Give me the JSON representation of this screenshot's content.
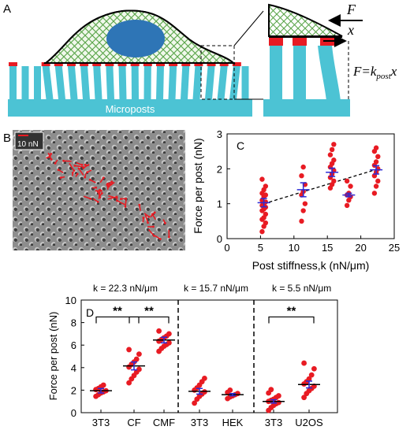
{
  "panels": {
    "a": "A",
    "b": "B",
    "c": "C",
    "d": "D"
  },
  "schematic": {
    "base_label": "Microposts",
    "force_symbol": "F",
    "disp_symbol": "x",
    "formula_lhs": "F",
    "formula_k": "k",
    "formula_sub": "post",
    "formula_x": "x",
    "colors": {
      "post": "#4cc3d4",
      "cap": "#e81b23",
      "mesh_fill": "#e6f2dc",
      "mesh": "#5ca64c",
      "nucleus": "#2e75b6"
    }
  },
  "micrograph": {
    "scale_label": "10 nN"
  },
  "chart_data": [
    {
      "id": "C",
      "type": "scatter",
      "xlabel": "Post stiffness,k (nN/μm)",
      "ylabel": "Force per post (nN)",
      "xlim": [
        0,
        25
      ],
      "ylim": [
        0,
        3
      ],
      "xticks": [
        "0",
        "5",
        "10",
        "15",
        "20",
        "25"
      ],
      "yticks": [
        "0",
        "1",
        "2",
        "3"
      ],
      "groups": [
        {
          "x": 5.5,
          "mean": 1.03,
          "err": 0.12,
          "points": [
            0.2,
            0.35,
            0.45,
            0.55,
            0.6,
            0.7,
            0.8,
            0.85,
            0.9,
            0.95,
            1.0,
            1.05,
            1.1,
            1.2,
            1.25,
            1.3,
            1.4,
            1.5,
            1.7
          ]
        },
        {
          "x": 11.4,
          "mean": 1.4,
          "err": 0.2,
          "points": [
            0.5,
            0.8,
            1.0,
            1.25,
            1.35,
            1.55,
            1.8,
            2.05
          ]
        },
        {
          "x": 15.7,
          "mean": 1.9,
          "err": 0.12,
          "points": [
            1.45,
            1.55,
            1.65,
            1.75,
            1.85,
            1.95,
            2.05,
            2.15,
            2.25,
            2.4,
            2.55,
            2.7
          ]
        },
        {
          "x": 18.2,
          "mean": 1.25,
          "err": 0.05,
          "points": [
            0.95,
            1.1,
            1.2,
            1.25,
            1.3,
            1.5,
            1.65
          ]
        },
        {
          "x": 22.3,
          "mean": 1.97,
          "err": 0.12,
          "points": [
            1.3,
            1.5,
            1.65,
            1.8,
            1.9,
            2.0,
            2.1,
            2.2,
            2.35,
            2.5,
            2.6
          ]
        }
      ],
      "fit": {
        "x": [
          5.5,
          22.3
        ],
        "y": [
          1.0,
          1.98
        ]
      },
      "colors": {
        "points": "#e81b23",
        "mean": "#2b2bd6",
        "fit": "#000000"
      }
    },
    {
      "id": "D",
      "type": "scatter",
      "ylabel": "Force per post (nN)",
      "ylim": [
        0,
        10
      ],
      "yticks": [
        "0",
        "2",
        "4",
        "6",
        "8",
        "10"
      ],
      "section_labels": [
        "k = 22.3 nN/μm",
        "k = 15.7 nN/μm",
        "k = 5.5 nN/μm"
      ],
      "categories": [
        "3T3",
        "CF",
        "CMF",
        "3T3",
        "HEK",
        "3T3",
        "U2OS"
      ],
      "groups": [
        {
          "mean": 1.95,
          "err": 0.2,
          "points": [
            1.45,
            1.6,
            1.75,
            1.85,
            1.95,
            2.05,
            2.15,
            2.3,
            2.45
          ]
        },
        {
          "mean": 4.15,
          "err": 0.35,
          "points": [
            2.65,
            3.0,
            3.3,
            3.6,
            3.85,
            4.05,
            4.3,
            4.5,
            4.75,
            5.2,
            5.6
          ]
        },
        {
          "mean": 6.45,
          "err": 0.25,
          "points": [
            5.45,
            5.7,
            5.9,
            6.05,
            6.2,
            6.35,
            6.5,
            6.65,
            6.8,
            7.0,
            7.25
          ]
        },
        {
          "mean": 1.9,
          "err": 0.25,
          "points": [
            0.85,
            1.2,
            1.45,
            1.65,
            1.85,
            2.0,
            2.2,
            2.45,
            2.75,
            3.05
          ]
        },
        {
          "mean": 1.6,
          "err": 0.1,
          "points": [
            1.25,
            1.4,
            1.5,
            1.6,
            1.7,
            1.8,
            2.0
          ]
        },
        {
          "mean": 1.0,
          "err": 0.15,
          "points": [
            0.2,
            0.45,
            0.65,
            0.8,
            0.9,
            1.0,
            1.1,
            1.2,
            1.35,
            1.5,
            1.75,
            2.05
          ]
        },
        {
          "mean": 2.5,
          "err": 0.3,
          "points": [
            1.35,
            1.7,
            1.95,
            2.15,
            2.35,
            2.55,
            2.75,
            3.0,
            3.35,
            3.9,
            4.4
          ]
        }
      ],
      "significance": [
        {
          "from": 0,
          "to": 1,
          "label": "**"
        },
        {
          "from": 1,
          "to": 2,
          "label": "**"
        },
        {
          "from": 5,
          "to": 6,
          "label": "**"
        }
      ],
      "colors": {
        "points": "#e81b23",
        "mean": "#2b2bd6",
        "line": "#000000"
      }
    }
  ]
}
